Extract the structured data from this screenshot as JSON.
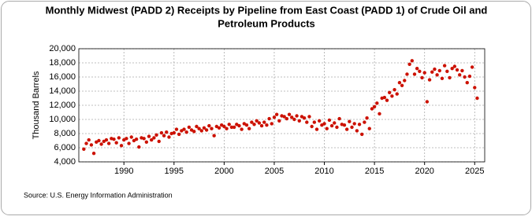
{
  "chart_data": {
    "type": "scatter",
    "title": [
      "Monthly Midwest (PADD 2) Receipts by Pipeline from East Coast (PADD 1) of Crude Oil and",
      "Petroleum Products"
    ],
    "ylabel": "Thousand Barrels",
    "source": "Source: U.S. Energy Information Administration",
    "color": "#cc1100",
    "grid": true,
    "xlim": [
      1985.5,
      2026
    ],
    "xticks": [
      1990,
      1995,
      2000,
      2005,
      2010,
      2015,
      2020,
      2025
    ],
    "ylim": [
      4000,
      20000
    ],
    "yticks": [
      {
        "value": 4000,
        "label": "4,000"
      },
      {
        "value": 6000,
        "label": "6,000"
      },
      {
        "value": 8000,
        "label": "8,000"
      },
      {
        "value": 10000,
        "label": "10,000"
      },
      {
        "value": 12000,
        "label": "12,000"
      },
      {
        "value": 14000,
        "label": "14,000"
      },
      {
        "value": 16000,
        "label": "16,000"
      },
      {
        "value": 18000,
        "label": "18,000"
      },
      {
        "value": 20000,
        "label": "20,000"
      }
    ],
    "x": [
      1986,
      1986.25,
      1986.5,
      1986.75,
      1987,
      1987.25,
      1987.5,
      1987.75,
      1988,
      1988.25,
      1988.5,
      1988.75,
      1989,
      1989.25,
      1989.5,
      1989.75,
      1990,
      1990.25,
      1990.5,
      1990.75,
      1991,
      1991.25,
      1991.5,
      1991.75,
      1992,
      1992.25,
      1992.5,
      1992.75,
      1993,
      1993.25,
      1993.5,
      1993.75,
      1994,
      1994.25,
      1994.5,
      1994.75,
      1995,
      1995.25,
      1995.5,
      1995.75,
      1996,
      1996.25,
      1996.5,
      1996.75,
      1997,
      1997.25,
      1997.5,
      1997.75,
      1998,
      1998.25,
      1998.5,
      1998.75,
      1999,
      1999.25,
      1999.5,
      1999.75,
      2000,
      2000.25,
      2000.5,
      2000.75,
      2001,
      2001.25,
      2001.5,
      2001.75,
      2002,
      2002.25,
      2002.5,
      2002.75,
      2003,
      2003.25,
      2003.5,
      2003.75,
      2004,
      2004.25,
      2004.5,
      2004.75,
      2005,
      2005.25,
      2005.5,
      2005.75,
      2006,
      2006.25,
      2006.5,
      2006.75,
      2007,
      2007.25,
      2007.5,
      2007.75,
      2008,
      2008.25,
      2008.5,
      2008.75,
      2009,
      2009.25,
      2009.5,
      2009.75,
      2010,
      2010.25,
      2010.5,
      2010.75,
      2011,
      2011.25,
      2011.5,
      2011.75,
      2012,
      2012.25,
      2012.5,
      2012.75,
      2013,
      2013.25,
      2013.5,
      2013.75,
      2014,
      2014.25,
      2014.5,
      2014.75,
      2015,
      2015.25,
      2015.5,
      2015.75,
      2016,
      2016.25,
      2016.5,
      2016.75,
      2017,
      2017.25,
      2017.5,
      2017.75,
      2018,
      2018.25,
      2018.5,
      2018.75,
      2019,
      2019.25,
      2019.5,
      2019.75,
      2020,
      2020.25,
      2020.5,
      2020.75,
      2021,
      2021.25,
      2021.5,
      2021.75,
      2022,
      2022.25,
      2022.5,
      2022.75,
      2023,
      2023.25,
      2023.5,
      2023.75,
      2024,
      2024.25,
      2024.5,
      2024.75,
      2025,
      2025.25
    ],
    "values": [
      5800,
      6600,
      7100,
      6400,
      5200,
      6800,
      7000,
      6500,
      6900,
      7100,
      6600,
      7300,
      7200,
      6700,
      7400,
      6300,
      7100,
      7300,
      6600,
      7500,
      7000,
      7200,
      6100,
      7400,
      7300,
      6800,
      7600,
      7100,
      7400,
      7800,
      6900,
      8100,
      7700,
      8200,
      7500,
      8000,
      8100,
      8600,
      7900,
      8400,
      8600,
      8200,
      8900,
      8500,
      8300,
      9000,
      8700,
      8400,
      8800,
      8500,
      9100,
      8700,
      7700,
      9000,
      8800,
      9200,
      9000,
      8700,
      9300,
      8900,
      8900,
      9300,
      9100,
      8600,
      9400,
      9200,
      8700,
      9600,
      9300,
      9800,
      9500,
      9100,
      9600,
      9200,
      10100,
      9400,
      10300,
      10700,
      9800,
      10500,
      10400,
      10100,
      10700,
      10300,
      10000,
      10500,
      9800,
      10400,
      10200,
      9600,
      10400,
      9000,
      9600,
      8600,
      9800,
      9200,
      9400,
      8700,
      9900,
      9100,
      9500,
      8900,
      10100,
      9300,
      9200,
      8600,
      9700,
      8900,
      9400,
      8400,
      9300,
      7900,
      9600,
      10200,
      8700,
      11500,
      11800,
      12300,
      10800,
      13000,
      13100,
      12700,
      13800,
      13300,
      14200,
      13600,
      15200,
      14800,
      15500,
      16400,
      17800,
      18300,
      16400,
      17200,
      16800,
      15900,
      16600,
      12500,
      15600,
      16700,
      17100,
      16300,
      16900,
      15800,
      17600,
      16800,
      15900,
      17200,
      17500,
      17000,
      16300,
      16900,
      16000,
      15200,
      16100,
      17400,
      14500,
      13000
    ]
  }
}
